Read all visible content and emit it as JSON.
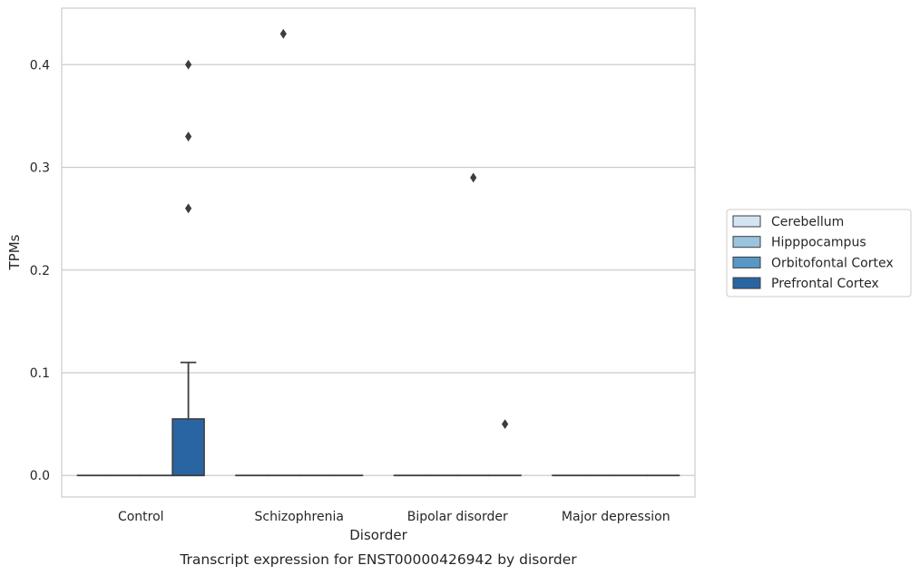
{
  "caption": "Transcript expression for ENST00000426942 by disorder",
  "chart_data": {
    "type": "box",
    "title": "",
    "xlabel": "Disorder",
    "ylabel": "TPMs",
    "categories": [
      "Control",
      "Schizophrenia",
      "Bipolar disorder",
      "Major depression"
    ],
    "ylim": [
      -0.021,
      0.455
    ],
    "yticks": [
      0.0,
      0.1,
      0.2,
      0.3,
      0.4
    ],
    "ytick_labels": [
      "0.0",
      "0.1",
      "0.2",
      "0.3",
      "0.4"
    ],
    "grid": "horizontal",
    "legend_position": "right-outside",
    "series": [
      {
        "name": "Cerebellum",
        "color": "#d4e4f1",
        "boxes": [
          {
            "q1": 0,
            "median": 0,
            "q3": 0,
            "whisker_low": 0,
            "whisker_high": 0,
            "outliers": []
          },
          {
            "q1": 0,
            "median": 0,
            "q3": 0,
            "whisker_low": 0,
            "whisker_high": 0,
            "outliers": []
          },
          {
            "q1": 0,
            "median": 0,
            "q3": 0,
            "whisker_low": 0,
            "whisker_high": 0,
            "outliers": []
          },
          {
            "q1": 0,
            "median": 0,
            "q3": 0,
            "whisker_low": 0,
            "whisker_high": 0,
            "outliers": []
          }
        ]
      },
      {
        "name": "Hipppocampus",
        "color": "#9ac4de",
        "boxes": [
          {
            "q1": 0,
            "median": 0,
            "q3": 0,
            "whisker_low": 0,
            "whisker_high": 0,
            "outliers": []
          },
          {
            "q1": 0,
            "median": 0,
            "q3": 0,
            "whisker_low": 0,
            "whisker_high": 0,
            "outliers": [
              0.43
            ]
          },
          {
            "q1": 0,
            "median": 0,
            "q3": 0,
            "whisker_low": 0,
            "whisker_high": 0,
            "outliers": []
          },
          {
            "q1": 0,
            "median": 0,
            "q3": 0,
            "whisker_low": 0,
            "whisker_high": 0,
            "outliers": []
          }
        ]
      },
      {
        "name": "Orbitofontal Cortex",
        "color": "#5897c6",
        "boxes": [
          {
            "q1": 0,
            "median": 0,
            "q3": 0,
            "whisker_low": 0,
            "whisker_high": 0,
            "outliers": []
          },
          {
            "q1": 0,
            "median": 0,
            "q3": 0,
            "whisker_low": 0,
            "whisker_high": 0,
            "outliers": []
          },
          {
            "q1": 0,
            "median": 0,
            "q3": 0,
            "whisker_low": 0,
            "whisker_high": 0,
            "outliers": [
              0.29
            ]
          },
          {
            "q1": 0,
            "median": 0,
            "q3": 0,
            "whisker_low": 0,
            "whisker_high": 0,
            "outliers": []
          }
        ]
      },
      {
        "name": "Prefrontal Cortex",
        "color": "#2a65a3",
        "boxes": [
          {
            "q1": 0,
            "median": 0,
            "q3": 0.055,
            "whisker_low": 0,
            "whisker_high": 0.11,
            "outliers": [
              0.26,
              0.33,
              0.4
            ]
          },
          {
            "q1": 0,
            "median": 0,
            "q3": 0,
            "whisker_low": 0,
            "whisker_high": 0,
            "outliers": []
          },
          {
            "q1": 0,
            "median": 0,
            "q3": 0,
            "whisker_low": 0,
            "whisker_high": 0,
            "outliers": [
              0.05
            ]
          },
          {
            "q1": 0,
            "median": 0,
            "q3": 0,
            "whisker_low": 0,
            "whisker_high": 0,
            "outliers": []
          }
        ]
      }
    ]
  }
}
